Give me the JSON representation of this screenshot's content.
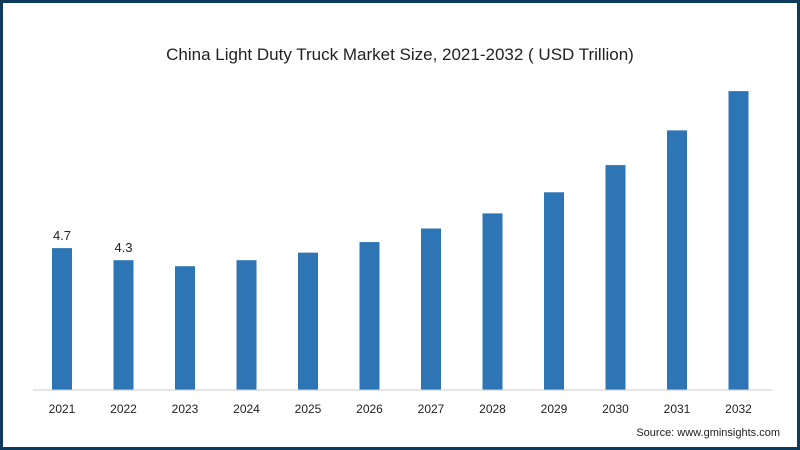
{
  "chart_data": {
    "type": "bar",
    "title": "China Light Duty Truck Market Size, 2021-2032 ( USD Trillion)",
    "categories": [
      "2021",
      "2022",
      "2023",
      "2024",
      "2025",
      "2026",
      "2027",
      "2028",
      "2029",
      "2030",
      "2031",
      "2032"
    ],
    "values": [
      4.7,
      4.3,
      4.1,
      4.3,
      4.55,
      4.9,
      5.35,
      5.85,
      6.55,
      7.45,
      8.6,
      9.9
    ],
    "data_labels": [
      "4.7",
      "4.3",
      "",
      "",
      "",
      "",
      "",
      "",
      "",
      "",
      "",
      ""
    ],
    "xlabel": "",
    "ylabel": "",
    "ylim": [
      0,
      10.6
    ],
    "bar_color": "#2e75b6",
    "grid": false,
    "legend": "none"
  },
  "source": "Source: www.gminsights.com"
}
